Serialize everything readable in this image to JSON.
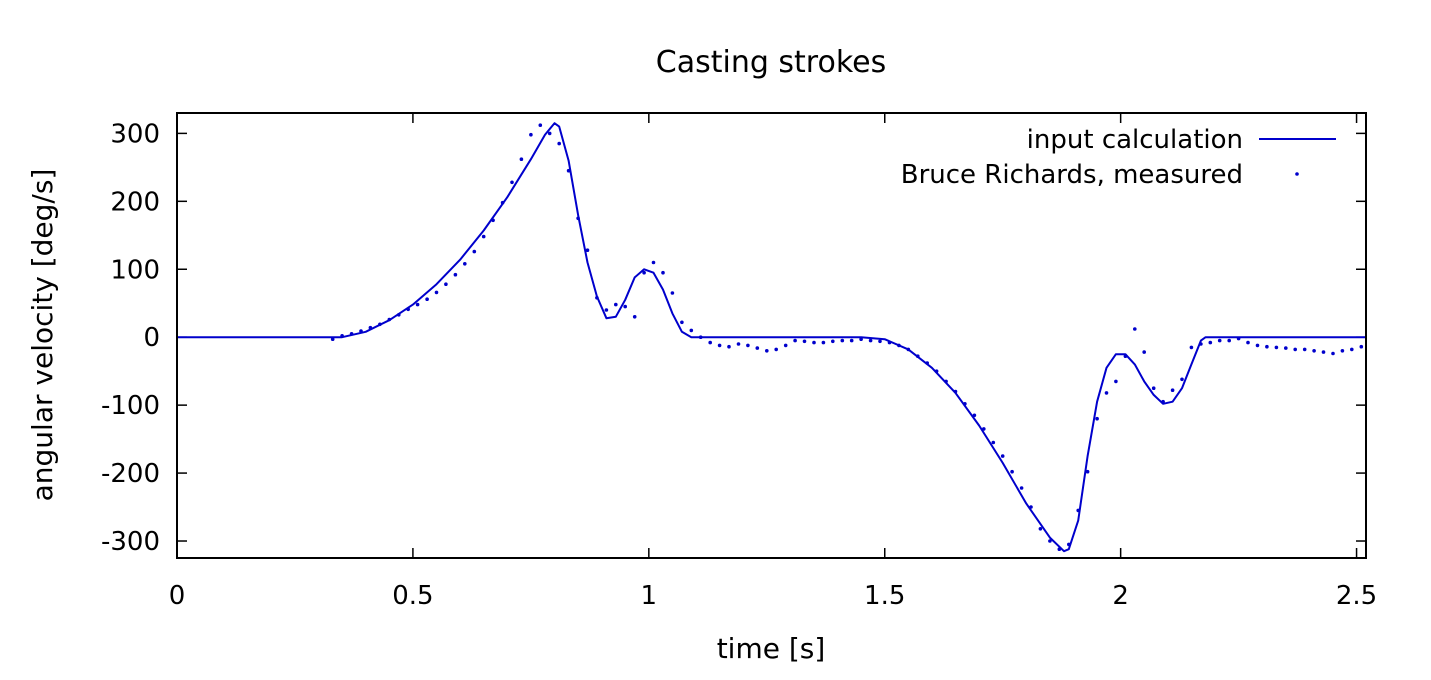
{
  "chart_data": {
    "type": "line",
    "title": "Casting strokes",
    "xlabel": "time [s]",
    "ylabel": "angular velocity [deg/s]",
    "xlim": [
      0,
      2.52
    ],
    "ylim": [
      -325,
      330
    ],
    "xticks": [
      0,
      0.5,
      1,
      1.5,
      2,
      2.5
    ],
    "xtick_labels": [
      "0",
      "0.5",
      "1",
      "1.5",
      "2",
      "2.5"
    ],
    "yticks": [
      -300,
      -200,
      -100,
      0,
      100,
      200,
      300
    ],
    "ytick_labels": [
      "-300",
      "-200",
      "-100",
      "0",
      "100",
      "200",
      "300"
    ],
    "grid": false,
    "legend_position": "top-right",
    "colors": {
      "series": "#0000cc",
      "axes": "#000000",
      "background": "#ffffff"
    },
    "series": [
      {
        "name": "input calculation",
        "style": "line",
        "x": [
          0,
          0.35,
          0.4,
          0.45,
          0.5,
          0.55,
          0.6,
          0.65,
          0.7,
          0.75,
          0.78,
          0.8,
          0.81,
          0.83,
          0.85,
          0.87,
          0.89,
          0.91,
          0.93,
          0.95,
          0.97,
          0.99,
          1.01,
          1.03,
          1.05,
          1.07,
          1.09,
          1.1,
          1.45,
          1.5,
          1.55,
          1.6,
          1.65,
          1.7,
          1.75,
          1.8,
          1.85,
          1.88,
          1.89,
          1.91,
          1.93,
          1.95,
          1.97,
          1.99,
          2.01,
          2.03,
          2.05,
          2.07,
          2.09,
          2.11,
          2.13,
          2.15,
          2.17,
          2.18,
          2.52
        ],
        "y": [
          0,
          0,
          8,
          25,
          48,
          78,
          114,
          157,
          206,
          262,
          298,
          315,
          310,
          260,
          180,
          110,
          60,
          28,
          30,
          55,
          88,
          100,
          95,
          70,
          35,
          8,
          0,
          0,
          0,
          -3,
          -18,
          -45,
          -82,
          -130,
          -185,
          -245,
          -295,
          -315,
          -312,
          -270,
          -175,
          -95,
          -45,
          -25,
          -25,
          -40,
          -65,
          -85,
          -98,
          -95,
          -75,
          -40,
          -5,
          0,
          0
        ]
      },
      {
        "name": "Bruce Richards, measured",
        "style": "points",
        "x": [
          0.33,
          0.35,
          0.37,
          0.39,
          0.41,
          0.43,
          0.45,
          0.47,
          0.49,
          0.51,
          0.53,
          0.55,
          0.57,
          0.59,
          0.61,
          0.63,
          0.65,
          0.67,
          0.69,
          0.71,
          0.73,
          0.75,
          0.77,
          0.79,
          0.81,
          0.83,
          0.85,
          0.87,
          0.89,
          0.91,
          0.93,
          0.95,
          0.97,
          0.99,
          1.01,
          1.03,
          1.05,
          1.07,
          1.09,
          1.11,
          1.13,
          1.15,
          1.17,
          1.19,
          1.21,
          1.23,
          1.25,
          1.27,
          1.29,
          1.31,
          1.33,
          1.35,
          1.37,
          1.39,
          1.41,
          1.43,
          1.45,
          1.47,
          1.49,
          1.51,
          1.53,
          1.55,
          1.57,
          1.59,
          1.61,
          1.63,
          1.65,
          1.67,
          1.69,
          1.71,
          1.73,
          1.75,
          1.77,
          1.79,
          1.81,
          1.83,
          1.85,
          1.87,
          1.89,
          1.91,
          1.93,
          1.95,
          1.97,
          1.99,
          2.01,
          2.03,
          2.05,
          2.07,
          2.09,
          2.11,
          2.13,
          2.15,
          2.17,
          2.19,
          2.21,
          2.23,
          2.25,
          2.27,
          2.29,
          2.31,
          2.33,
          2.35,
          2.37,
          2.39,
          2.41,
          2.43,
          2.45,
          2.47,
          2.49,
          2.51
        ],
        "y": [
          -3,
          2,
          5,
          9,
          14,
          19,
          26,
          33,
          41,
          48,
          56,
          66,
          78,
          92,
          108,
          126,
          148,
          172,
          198,
          228,
          262,
          298,
          312,
          300,
          285,
          245,
          175,
          128,
          58,
          40,
          48,
          45,
          30,
          95,
          110,
          95,
          65,
          22,
          10,
          0,
          -8,
          -12,
          -14,
          -10,
          -12,
          -16,
          -20,
          -18,
          -12,
          -5,
          -6,
          -8,
          -8,
          -6,
          -5,
          -5,
          -3,
          -5,
          -6,
          -8,
          -12,
          -18,
          -28,
          -38,
          -50,
          -65,
          -80,
          -98,
          -115,
          -135,
          -155,
          -175,
          -198,
          -222,
          -250,
          -282,
          -300,
          -312,
          -305,
          -255,
          -198,
          -120,
          -82,
          -65,
          -28,
          12,
          -22,
          -75,
          -95,
          -78,
          -62,
          -15,
          -10,
          -8,
          -5,
          -5,
          -2,
          -8,
          -12,
          -14,
          -15,
          -16,
          -18,
          -18,
          -20,
          -22,
          -24,
          -20,
          -18,
          -14
        ]
      }
    ]
  }
}
